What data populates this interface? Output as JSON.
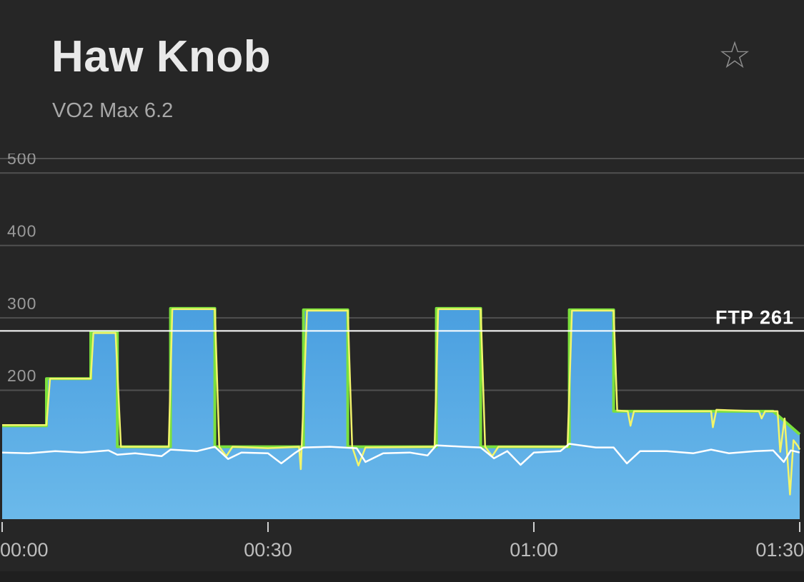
{
  "header": {
    "title": "Haw Knob",
    "subtitle": "VO2 Max 6.2",
    "favorite_icon": "star-outline-icon",
    "favorite_glyph": "☆"
  },
  "colors": {
    "background": "#262626",
    "grid": "#505050",
    "area_fill_top": "#4a9fe0",
    "area_fill_bottom": "#6bb9ea",
    "target_line": "#7be03c",
    "actual_power": "#f2f56b",
    "cadence": "#ffffff",
    "ftp_line": "#ffffff"
  },
  "chart_data": {
    "type": "area",
    "y_ticks": [
      "500",
      "400",
      "300",
      "200"
    ],
    "ylim": [
      0,
      520
    ],
    "x_ticks": [
      "00:00",
      "00:30",
      "01:00",
      "01:30"
    ],
    "xlim_minutes": [
      0,
      90
    ],
    "ftp": {
      "label": "FTP 261",
      "value": 261
    },
    "series": [
      {
        "key": "target",
        "points": [
          [
            0,
            130
          ],
          [
            5,
            130
          ],
          [
            5,
            195
          ],
          [
            10,
            195
          ],
          [
            10,
            260
          ],
          [
            13,
            260
          ],
          [
            13,
            101
          ],
          [
            19,
            101
          ],
          [
            19,
            292
          ],
          [
            24,
            292
          ],
          [
            24,
            101
          ],
          [
            34,
            101
          ],
          [
            34,
            290
          ],
          [
            39,
            290
          ],
          [
            39,
            101
          ],
          [
            49,
            101
          ],
          [
            49,
            292
          ],
          [
            54,
            292
          ],
          [
            54,
            101
          ],
          [
            64,
            101
          ],
          [
            64,
            290
          ],
          [
            69,
            290
          ],
          [
            69,
            150
          ],
          [
            87,
            150
          ],
          [
            90,
            118
          ]
        ]
      },
      {
        "key": "actual_power",
        "points": [
          [
            0,
            131
          ],
          [
            5,
            131
          ],
          [
            5.4,
            195
          ],
          [
            10,
            195
          ],
          [
            10.3,
            258
          ],
          [
            12.8,
            258
          ],
          [
            13.4,
            101
          ],
          [
            18.8,
            101
          ],
          [
            19.2,
            291
          ],
          [
            24,
            291
          ],
          [
            24.5,
            101
          ],
          [
            25.3,
            88
          ],
          [
            26,
            101
          ],
          [
            30,
            99
          ],
          [
            33.5,
            101
          ],
          [
            33.7,
            70
          ],
          [
            34.4,
            289
          ],
          [
            39,
            289
          ],
          [
            39.5,
            101
          ],
          [
            40.2,
            75
          ],
          [
            41,
            100
          ],
          [
            48.8,
            101
          ],
          [
            49.2,
            291
          ],
          [
            54,
            291
          ],
          [
            54.5,
            101
          ],
          [
            55.3,
            88
          ],
          [
            56,
            101
          ],
          [
            63.8,
            101
          ],
          [
            64.3,
            289
          ],
          [
            69,
            289
          ],
          [
            69.4,
            151
          ],
          [
            70.6,
            150
          ],
          [
            70.9,
            130
          ],
          [
            71.3,
            150
          ],
          [
            80,
            150
          ],
          [
            80.2,
            128
          ],
          [
            80.6,
            152
          ],
          [
            85.4,
            150
          ],
          [
            85.7,
            140
          ],
          [
            86.1,
            150
          ],
          [
            87.5,
            150
          ],
          [
            87.8,
            94
          ],
          [
            88.3,
            140
          ],
          [
            88.9,
            35
          ],
          [
            89.3,
            110
          ],
          [
            89.8,
            102
          ],
          [
            90,
            97
          ]
        ]
      },
      {
        "key": "cadence",
        "points": [
          [
            0,
            93
          ],
          [
            3,
            92
          ],
          [
            6,
            95
          ],
          [
            9,
            93
          ],
          [
            12,
            96
          ],
          [
            13,
            90
          ],
          [
            15,
            92
          ],
          [
            18,
            88
          ],
          [
            19,
            97
          ],
          [
            22,
            95
          ],
          [
            24,
            101
          ],
          [
            25.5,
            84
          ],
          [
            27,
            93
          ],
          [
            30,
            92
          ],
          [
            31.5,
            78
          ],
          [
            33,
            92
          ],
          [
            34,
            100
          ],
          [
            37,
            101
          ],
          [
            40,
            99
          ],
          [
            41,
            80
          ],
          [
            43,
            92
          ],
          [
            46,
            93
          ],
          [
            48,
            89
          ],
          [
            49,
            103
          ],
          [
            52,
            101
          ],
          [
            54,
            100
          ],
          [
            55.5,
            85
          ],
          [
            57,
            95
          ],
          [
            58.5,
            76
          ],
          [
            60,
            93
          ],
          [
            63,
            95
          ],
          [
            64,
            105
          ],
          [
            67,
            100
          ],
          [
            69,
            100
          ],
          [
            70.5,
            78
          ],
          [
            72,
            95
          ],
          [
            75,
            95
          ],
          [
            78,
            92
          ],
          [
            80,
            97
          ],
          [
            82,
            92
          ],
          [
            85,
            95
          ],
          [
            87,
            96
          ],
          [
            88.2,
            80
          ],
          [
            89,
            96
          ],
          [
            90,
            93
          ]
        ]
      }
    ]
  }
}
